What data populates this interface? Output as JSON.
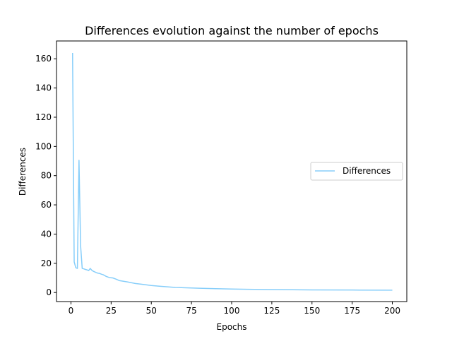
{
  "chart_data": {
    "type": "line",
    "title": "Differences evolution against the number of epochs",
    "xlabel": "Epochs",
    "ylabel": "Differences",
    "xlim": [
      -9,
      209
    ],
    "ylim": [
      -6.2,
      172.2
    ],
    "xticks": [
      0,
      25,
      50,
      75,
      100,
      125,
      150,
      175,
      200
    ],
    "yticks": [
      0,
      20,
      40,
      60,
      80,
      100,
      120,
      140,
      160
    ],
    "grid": false,
    "legend_position": "center-right",
    "series": [
      {
        "name": "Differences",
        "color": "#87CEFA",
        "x": [
          1,
          2,
          3,
          4,
          5,
          6,
          7,
          8,
          9,
          10,
          11,
          12,
          13,
          14,
          15,
          16,
          17,
          18,
          19,
          20,
          22,
          24,
          26,
          28,
          30,
          35,
          40,
          45,
          50,
          55,
          60,
          65,
          70,
          75,
          80,
          90,
          100,
          110,
          125,
          150,
          175,
          200
        ],
        "y": [
          164,
          21,
          17,
          16.5,
          90.5,
          32,
          16.5,
          16.2,
          15.8,
          15.5,
          15,
          16.5,
          15.2,
          14.5,
          14,
          13.5,
          13.2,
          13,
          12.5,
          12.2,
          11,
          10.2,
          10,
          9.2,
          8.2,
          7.3,
          6.2,
          5.5,
          4.8,
          4.3,
          3.9,
          3.5,
          3.3,
          3.1,
          2.9,
          2.6,
          2.4,
          2.2,
          2.0,
          1.8,
          1.7,
          1.6
        ]
      }
    ]
  }
}
